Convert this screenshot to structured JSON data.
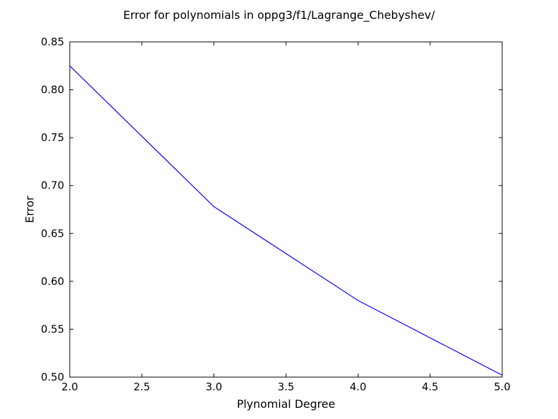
{
  "chart_data": {
    "type": "line",
    "title": "Error for polynomials in oppg3/f1/Lagrange_Chebyshev/",
    "xlabel": "Plynomial Degree",
    "ylabel": "Error",
    "xlim": [
      2.0,
      5.0
    ],
    "ylim": [
      0.5,
      0.85
    ],
    "x_ticks": [
      "2.0",
      "2.5",
      "3.0",
      "3.5",
      "4.0",
      "4.5",
      "5.0"
    ],
    "y_ticks": [
      "0.50",
      "0.55",
      "0.60",
      "0.65",
      "0.70",
      "0.75",
      "0.80",
      "0.85"
    ],
    "grid": false,
    "series": [
      {
        "color": "#0000ff",
        "x": [
          2,
          3,
          4,
          5
        ],
        "y": [
          0.825,
          0.678,
          0.58,
          0.502
        ]
      }
    ]
  }
}
